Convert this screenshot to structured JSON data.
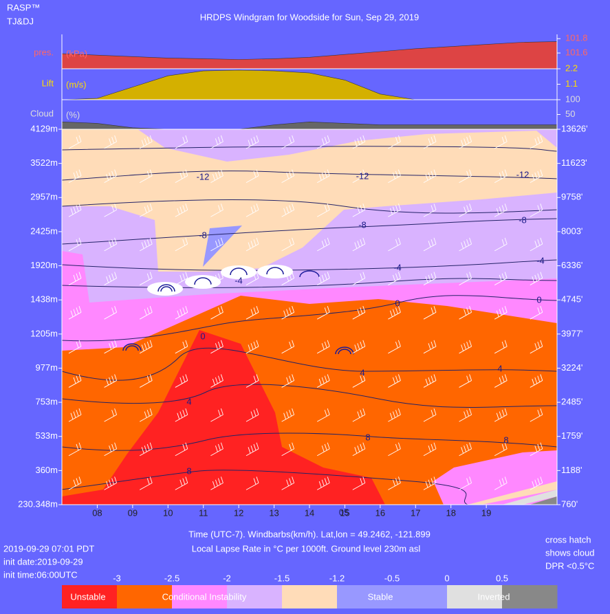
{
  "chart_data": {
    "type": "windgram",
    "title": "HRDPS Windgram for Woodside for Sun, Sep 29, 2019",
    "brand": [
      "RASP™",
      "TJ&DJ"
    ],
    "x": [
      7,
      8,
      9,
      10,
      11,
      12,
      13,
      14,
      15,
      16,
      17,
      18,
      19,
      20,
      21
    ],
    "xlim": [
      7,
      21
    ],
    "xticks": [
      {
        "value": 8,
        "label": "08"
      },
      {
        "value": 9,
        "label": "09"
      },
      10,
      11,
      12,
      13,
      14,
      15,
      16,
      17,
      18,
      19
    ],
    "panels": [
      {
        "name": "pres.",
        "unit": "(kPa)",
        "color": "#dd4444",
        "label_color": "#ff6666",
        "values": [
          101.59,
          101.57,
          101.55,
          101.53,
          101.52,
          101.51,
          101.52,
          101.54,
          101.58,
          101.62,
          101.66,
          101.69,
          101.72,
          101.75,
          101.76
        ],
        "ylim": [
          101.38,
          101.86
        ],
        "yticks": [
          101.8,
          101.6
        ]
      },
      {
        "name": "Lift",
        "unit": "(m/s)",
        "color": "#d4b000",
        "label_color": "#ffdd00",
        "values": [
          0,
          0.1,
          0.9,
          1.7,
          2.05,
          2.1,
          2.05,
          1.9,
          1.4,
          0.4,
          0,
          0,
          0,
          0,
          0
        ],
        "ylim": [
          0,
          2.2
        ],
        "yticks": [
          2.2,
          1.1
        ]
      },
      {
        "name": "Cloud",
        "unit": "(%)",
        "color": "#666666",
        "label_color": "#dddddd",
        "values": [
          25,
          20,
          5,
          0,
          0,
          0,
          15,
          25,
          20,
          15,
          15,
          15,
          15,
          15,
          15
        ],
        "ylim": [
          0,
          100
        ],
        "yticks": [
          100,
          50
        ]
      }
    ],
    "yticks": [
      {
        "value": 4129,
        "label": "4129m"
      },
      {
        "value": 3522,
        "label": "3522m"
      },
      {
        "value": 2957,
        "label": "2957m"
      },
      {
        "value": 2425,
        "label": "2425m"
      },
      {
        "value": 1920,
        "label": "1920m"
      },
      {
        "value": 1438,
        "label": "1438m"
      },
      {
        "value": 1205,
        "label": "1205m"
      },
      {
        "value": 977,
        "label": "977m"
      },
      {
        "value": 753,
        "label": "753m"
      },
      {
        "value": 533,
        "label": "533m"
      },
      {
        "value": 360,
        "label": "360m"
      },
      {
        "value": 230.348,
        "label": "230.348m"
      }
    ],
    "y2ticks": [
      {
        "value": 13626,
        "label": "13626'"
      },
      {
        "value": 11623,
        "label": "11623'"
      },
      {
        "value": 9758,
        "label": "9758'"
      },
      {
        "value": 8003,
        "label": "8003'"
      },
      {
        "value": 6336,
        "label": "6336'"
      },
      {
        "value": 4745,
        "label": "4745'"
      },
      {
        "value": 3977,
        "label": "3977'"
      },
      {
        "value": 3224,
        "label": "3224'"
      },
      {
        "value": 2485,
        "label": "2485'"
      },
      {
        "value": 1759,
        "label": "1759'"
      },
      {
        "value": 1188,
        "label": "1188'"
      },
      {
        "value": 760,
        "label": "760'"
      }
    ],
    "contour_levels": [
      -12,
      -8,
      -4,
      0,
      4,
      8
    ],
    "annotation": "05",
    "xlabel": "Time (UTC-7). Windbarbs(km/h). Lat,lon = 49.2462, -121.899",
    "subtitle": "Local Lapse Rate in °C per 1000ft.   Ground level 230m asl",
    "run_info": [
      "2019-09-29 07:01 PDT",
      "init date:2019-09-29",
      "init time:06:00UTC"
    ],
    "note": [
      "cross hatch",
      "shows cloud",
      "DPR <0.5°C"
    ],
    "legend": {
      "ticks": [
        -3,
        -2.5,
        -2,
        -1.5,
        -1.2,
        -0.5,
        0,
        0.5
      ],
      "colors": [
        "#ff2222",
        "#ff6600",
        "#ff88ff",
        "#d9b3ff",
        "#ffdcb8",
        "#9898ff",
        "#9898ff",
        "#e0e0e0",
        "#888888"
      ],
      "labels": [
        "Unstable",
        "Conditional Instability",
        "Stable",
        "Inverted"
      ]
    }
  }
}
